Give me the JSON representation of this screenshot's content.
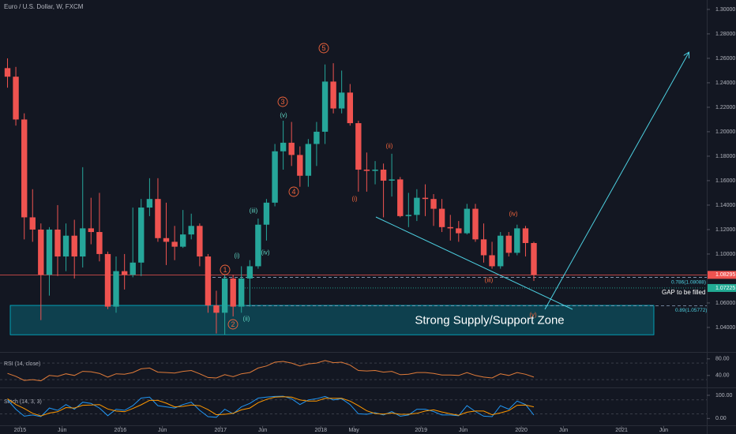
{
  "chart_data": {
    "type": "candlestick",
    "title": "Euro / U.S. Dollar, W, FXCM",
    "up_color": "#26a69a",
    "down_color": "#ef5350",
    "x": [
      2014.875,
      2014.958,
      2015.042,
      2015.125,
      2015.208,
      2015.292,
      2015.375,
      2015.458,
      2015.542,
      2015.625,
      2015.708,
      2015.792,
      2015.875,
      2015.958,
      2016.042,
      2016.125,
      2016.208,
      2016.292,
      2016.375,
      2016.458,
      2016.542,
      2016.625,
      2016.708,
      2016.792,
      2016.875,
      2016.958,
      2017.042,
      2017.125,
      2017.208,
      2017.292,
      2017.375,
      2017.458,
      2017.542,
      2017.625,
      2017.708,
      2017.792,
      2017.875,
      2017.958,
      2018.042,
      2018.125,
      2018.208,
      2018.292,
      2018.375,
      2018.458,
      2018.542,
      2018.625,
      2018.708,
      2018.792,
      2018.875,
      2018.958,
      2019.042,
      2019.125,
      2019.208,
      2019.292,
      2019.375,
      2019.458,
      2019.542,
      2019.625,
      2019.708,
      2019.792,
      2019.875,
      2019.958,
      2020.042,
      2020.125
    ],
    "open": [
      1.252,
      1.245,
      1.21,
      1.13,
      1.12,
      1.083,
      1.12,
      1.098,
      1.115,
      1.098,
      1.121,
      1.118,
      1.1,
      1.057,
      1.086,
      1.083,
      1.093,
      1.138,
      1.145,
      1.113,
      1.11,
      1.106,
      1.116,
      1.123,
      1.098,
      1.058,
      1.052,
      1.08,
      1.057,
      1.08,
      1.09,
      1.124,
      1.142,
      1.184,
      1.191,
      1.181,
      1.164,
      1.19,
      1.2,
      1.241,
      1.219,
      1.232,
      1.207,
      1.169,
      1.168,
      1.169,
      1.16,
      1.161,
      1.131,
      1.132,
      1.146,
      1.145,
      1.137,
      1.122,
      1.121,
      1.117,
      1.137,
      1.112,
      1.099,
      1.09,
      1.115,
      1.101,
      1.121,
      1.109
    ],
    "high": [
      1.26,
      1.253,
      1.215,
      1.153,
      1.125,
      1.122,
      1.14,
      1.125,
      1.128,
      1.171,
      1.146,
      1.15,
      1.102,
      1.098,
      1.1,
      1.138,
      1.145,
      1.162,
      1.162,
      1.142,
      1.123,
      1.136,
      1.133,
      1.125,
      1.1,
      1.07,
      1.083,
      1.083,
      1.09,
      1.095,
      1.129,
      1.145,
      1.19,
      1.209,
      1.208,
      1.188,
      1.194,
      1.208,
      1.255,
      1.256,
      1.25,
      1.239,
      1.209,
      1.183,
      1.176,
      1.174,
      1.182,
      1.163,
      1.15,
      1.153,
      1.157,
      1.149,
      1.145,
      1.132,
      1.127,
      1.141,
      1.141,
      1.125,
      1.11,
      1.118,
      1.118,
      1.124,
      1.123,
      1.11
    ],
    "low": [
      1.236,
      1.205,
      1.112,
      1.11,
      1.046,
      1.066,
      1.082,
      1.086,
      1.08,
      1.089,
      1.108,
      1.094,
      1.055,
      1.052,
      1.071,
      1.081,
      1.082,
      1.131,
      1.11,
      1.091,
      1.095,
      1.105,
      1.112,
      1.09,
      1.052,
      1.035,
      1.034,
      1.049,
      1.052,
      1.057,
      1.088,
      1.111,
      1.139,
      1.169,
      1.172,
      1.155,
      1.155,
      1.172,
      1.19,
      1.215,
      1.215,
      1.205,
      1.151,
      1.151,
      1.157,
      1.13,
      1.147,
      1.13,
      1.122,
      1.127,
      1.131,
      1.123,
      1.118,
      1.111,
      1.11,
      1.116,
      1.11,
      1.093,
      1.088,
      1.088,
      1.098,
      1.099,
      1.098,
      1.078
    ],
    "close": [
      1.245,
      1.21,
      1.13,
      1.12,
      1.083,
      1.12,
      1.098,
      1.115,
      1.098,
      1.121,
      1.118,
      1.1,
      1.057,
      1.086,
      1.083,
      1.093,
      1.138,
      1.145,
      1.113,
      1.11,
      1.106,
      1.116,
      1.123,
      1.098,
      1.058,
      1.052,
      1.08,
      1.057,
      1.08,
      1.09,
      1.124,
      1.142,
      1.184,
      1.191,
      1.181,
      1.164,
      1.19,
      1.2,
      1.241,
      1.219,
      1.232,
      1.207,
      1.169,
      1.168,
      1.169,
      1.16,
      1.161,
      1.131,
      1.132,
      1.146,
      1.145,
      1.137,
      1.122,
      1.121,
      1.117,
      1.137,
      1.112,
      1.099,
      1.09,
      1.115,
      1.101,
      1.121,
      1.109,
      1.083
    ],
    "xlim": [
      2014.8,
      2021.85
    ],
    "xticks": [
      {
        "value": 2015,
        "label": "2015"
      },
      {
        "value": 2015.42,
        "label": "Jun"
      },
      {
        "value": 2016,
        "label": "2016"
      },
      {
        "value": 2016.42,
        "label": "Jun"
      },
      {
        "value": 2017,
        "label": "2017"
      },
      {
        "value": 2017.42,
        "label": "Jun"
      },
      {
        "value": 2018,
        "label": "2018"
      },
      {
        "value": 2018.33,
        "label": "May"
      },
      {
        "value": 2019,
        "label": "2019"
      },
      {
        "value": 2019.42,
        "label": "Jun"
      },
      {
        "value": 2020,
        "label": "2020"
      },
      {
        "value": 2020.42,
        "label": "Jun"
      },
      {
        "value": 2021,
        "label": "2021"
      },
      {
        "value": 2021.42,
        "label": "Jun"
      }
    ],
    "ylim": [
      1.0206,
      1.3077
    ],
    "yticks": [
      {
        "value": 1.04,
        "label": "1.04000"
      },
      {
        "value": 1.06,
        "label": "1.06000"
      },
      {
        "value": 1.1,
        "label": "1.10000"
      },
      {
        "value": 1.12,
        "label": "1.12000"
      },
      {
        "value": 1.14,
        "label": "1.14000"
      },
      {
        "value": 1.16,
        "label": "1.16000"
      },
      {
        "value": 1.18,
        "label": "1.18000"
      },
      {
        "value": 1.2,
        "label": "1.20000"
      },
      {
        "value": 1.22,
        "label": "1.22000"
      },
      {
        "value": 1.24,
        "label": "1.24000"
      },
      {
        "value": 1.26,
        "label": "1.26000"
      },
      {
        "value": 1.28,
        "label": "1.28000"
      },
      {
        "value": 1.3,
        "label": "1.30000"
      }
    ],
    "grid": false,
    "levels": [
      {
        "value": 1.08295,
        "color": "#ef5350",
        "style": "solid",
        "tag": true
      },
      {
        "value": 1.07225,
        "color": "#22ab94",
        "style": "dotted",
        "tag": true,
        "label": "GAP to be filled"
      },
      {
        "value": 1.08088,
        "color": "#8fa3bf",
        "style": "dashed",
        "label": "0.786(1.08088)"
      },
      {
        "value": 1.05772,
        "color": "#8fa3bf",
        "style": "dashed",
        "label": "0.89(1.05772)"
      }
    ],
    "zone": {
      "low": 1.034,
      "high": 1.058,
      "label": "Strong Supply/Support Zone",
      "color": "#00bcd4"
    },
    "annotations": [
      {
        "text": "1",
        "circled": true,
        "color": "#f0643c"
      },
      {
        "text": "2",
        "circled": true,
        "color": "#f0643c"
      },
      {
        "text": "3",
        "circled": true,
        "color": "#f0643c"
      },
      {
        "text": "4",
        "circled": true,
        "color": "#f0643c"
      },
      {
        "text": "5",
        "circled": true,
        "color": "#f0643c"
      },
      {
        "text": "(i)",
        "color": "#5fd3c0"
      },
      {
        "text": "(ii)",
        "color": "#5fd3c0"
      },
      {
        "text": "(iii)",
        "color": "#5fd3c0"
      },
      {
        "text": "(iv)",
        "color": "#5fd3c0"
      },
      {
        "text": "(v)",
        "color": "#5fd3c0"
      },
      {
        "text": "(i)",
        "color": "#f0643c"
      },
      {
        "text": "(ii)",
        "color": "#f0643c"
      },
      {
        "text": "(iii)",
        "color": "#f0643c"
      },
      {
        "text": "(iv)",
        "color": "#f0643c"
      },
      {
        "text": "(v)",
        "color": "#f0643c"
      }
    ],
    "rsi": {
      "title": "RSI (14, close)",
      "color": "#e07b39",
      "ylim": [
        13,
        93
      ],
      "yticks": [
        {
          "value": 80,
          "label": "80.00"
        },
        {
          "value": 40,
          "label": "40.00"
        }
      ],
      "bands": [
        70,
        30
      ],
      "values": [
        45,
        38,
        28,
        30,
        27,
        40,
        38,
        44,
        40,
        50,
        49,
        45,
        36,
        44,
        43,
        47,
        56,
        58,
        48,
        47,
        46,
        50,
        52,
        44,
        35,
        34,
        42,
        37,
        44,
        47,
        58,
        63,
        72,
        74,
        70,
        63,
        68,
        70,
        76,
        71,
        72,
        65,
        52,
        51,
        52,
        48,
        50,
        42,
        43,
        47,
        47,
        45,
        41,
        41,
        40,
        47,
        40,
        36,
        34,
        44,
        40,
        47,
        43,
        36
      ]
    },
    "stoch": {
      "title": "Stoch (14, 3, 3)",
      "ylim": [
        -33,
        127
      ],
      "yticks": [
        {
          "value": 100,
          "label": "100.00"
        },
        {
          "value": 0,
          "label": "0.00"
        }
      ],
      "bands": [
        80,
        20
      ],
      "series": [
        {
          "color": "#2196f3",
          "values": [
            80,
            40,
            10,
            15,
            8,
            45,
            35,
            60,
            40,
            70,
            65,
            45,
            12,
            40,
            35,
            55,
            88,
            92,
            55,
            50,
            45,
            60,
            70,
            35,
            8,
            5,
            40,
            20,
            50,
            65,
            88,
            92,
            95,
            96,
            85,
            60,
            80,
            85,
            95,
            80,
            85,
            60,
            20,
            18,
            25,
            15,
            30,
            10,
            15,
            40,
            40,
            30,
            15,
            15,
            12,
            55,
            30,
            10,
            8,
            55,
            40,
            75,
            60,
            15
          ]
        },
        {
          "color": "#ff9800",
          "values": [
            85,
            60,
            43,
            22,
            11,
            23,
            29,
            47,
            45,
            57,
            58,
            60,
            41,
            32,
            29,
            43,
            59,
            78,
            78,
            66,
            50,
            52,
            58,
            55,
            38,
            16,
            18,
            22,
            37,
            45,
            68,
            82,
            92,
            94,
            92,
            80,
            75,
            75,
            87,
            87,
            87,
            75,
            55,
            33,
            21,
            19,
            23,
            18,
            18,
            22,
            32,
            37,
            28,
            20,
            14,
            27,
            32,
            32,
            16,
            24,
            34,
            57,
            58,
            50
          ]
        }
      ]
    }
  }
}
